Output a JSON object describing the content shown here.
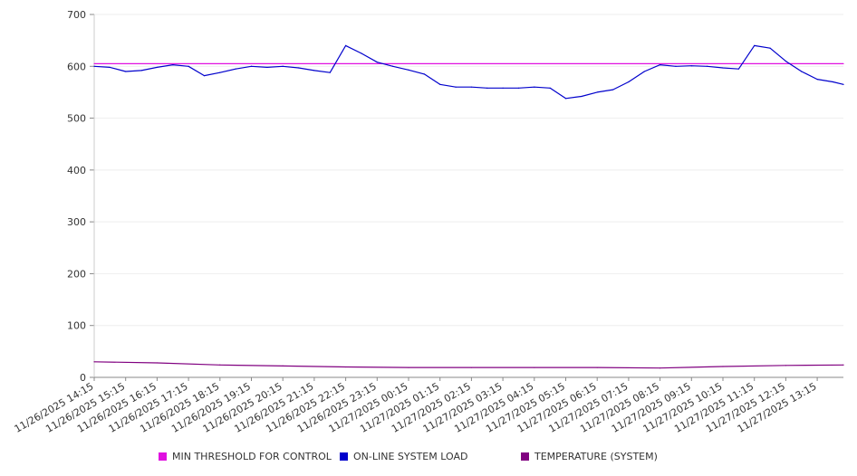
{
  "chart_data": {
    "type": "line",
    "ylim": [
      0,
      700
    ],
    "y_ticks": [
      0,
      100,
      200,
      300,
      400,
      500,
      600,
      700
    ],
    "grid": true,
    "legend_position": "bottom",
    "x_tick_labels": [
      "11/26/2025 14:15",
      "11/26/2025 15:15",
      "11/26/2025 16:15",
      "11/26/2025 17:15",
      "11/26/2025 18:15",
      "11/26/2025 19:15",
      "11/26/2025 20:15",
      "11/26/2025 21:15",
      "11/26/2025 22:15",
      "11/26/2025 23:15",
      "11/27/2025 00:15",
      "11/27/2025 01:15",
      "11/27/2025 02:15",
      "11/27/2025 03:15",
      "11/27/2025 04:15",
      "11/27/2025 05:15",
      "11/27/2025 06:15",
      "11/27/2025 07:15",
      "11/27/2025 08:15",
      "11/27/2025 09:15",
      "11/27/2025 10:15",
      "11/27/2025 11:15",
      "11/27/2025 12:15",
      "11/27/2025 13:15"
    ],
    "x_start": "11/26/2025 14:15",
    "series": [
      {
        "name": "MIN THRESHOLD FOR CONTROL",
        "color": "#e010e0",
        "x": [
          "11/26/2025 14:15",
          "11/27/2025 14:15"
        ],
        "values": [
          605,
          605
        ]
      },
      {
        "name": "ON-LINE SYSTEM LOAD",
        "color": "#0000cc",
        "x": [
          "11/26/2025 14:15",
          "11/26/2025 14:45",
          "11/26/2025 15:15",
          "11/26/2025 15:45",
          "11/26/2025 16:15",
          "11/26/2025 16:45",
          "11/26/2025 17:15",
          "11/26/2025 17:45",
          "11/26/2025 18:15",
          "11/26/2025 18:45",
          "11/26/2025 19:15",
          "11/26/2025 19:45",
          "11/26/2025 20:15",
          "11/26/2025 20:45",
          "11/26/2025 21:15",
          "11/26/2025 21:45",
          "11/26/2025 22:15",
          "11/26/2025 22:45",
          "11/26/2025 23:15",
          "11/26/2025 23:45",
          "11/27/2025 00:15",
          "11/27/2025 00:45",
          "11/27/2025 01:15",
          "11/27/2025 01:45",
          "11/27/2025 02:15",
          "11/27/2025 02:45",
          "11/27/2025 03:15",
          "11/27/2025 03:45",
          "11/27/2025 04:15",
          "11/27/2025 04:45",
          "11/27/2025 05:15",
          "11/27/2025 05:45",
          "11/27/2025 06:15",
          "11/27/2025 06:45",
          "11/27/2025 07:15",
          "11/27/2025 07:45",
          "11/27/2025 08:15",
          "11/27/2025 08:45",
          "11/27/2025 09:15",
          "11/27/2025 09:45",
          "11/27/2025 10:15",
          "11/27/2025 10:45",
          "11/27/2025 11:15",
          "11/27/2025 11:45",
          "11/27/2025 12:15",
          "11/27/2025 12:45",
          "11/27/2025 13:15",
          "11/27/2025 13:45",
          "11/27/2025 14:15"
        ],
        "values": [
          600,
          598,
          590,
          592,
          598,
          603,
          600,
          582,
          588,
          595,
          600,
          598,
          600,
          597,
          592,
          588,
          640,
          625,
          608,
          600,
          593,
          585,
          565,
          560,
          560,
          558,
          558,
          558,
          560,
          558,
          538,
          542,
          550,
          555,
          570,
          590,
          603,
          600,
          601,
          600,
          597,
          595,
          640,
          635,
          610,
          590,
          575,
          570,
          565
        ]
      },
      {
        "name": "TEMPERATURE (SYSTEM)",
        "color": "#800080",
        "x": [
          "11/26/2025 14:15",
          "11/26/2025 16:15",
          "11/26/2025 18:15",
          "11/26/2025 20:15",
          "11/26/2025 22:15",
          "11/27/2025 00:15",
          "11/27/2025 02:15",
          "11/27/2025 04:15",
          "11/27/2025 06:15",
          "11/27/2025 08:15",
          "11/27/2025 10:15",
          "11/27/2025 12:15",
          "11/27/2025 14:15"
        ],
        "values": [
          30,
          28,
          24,
          22,
          20,
          19,
          19,
          19,
          19,
          18,
          21,
          23,
          24
        ]
      }
    ]
  }
}
